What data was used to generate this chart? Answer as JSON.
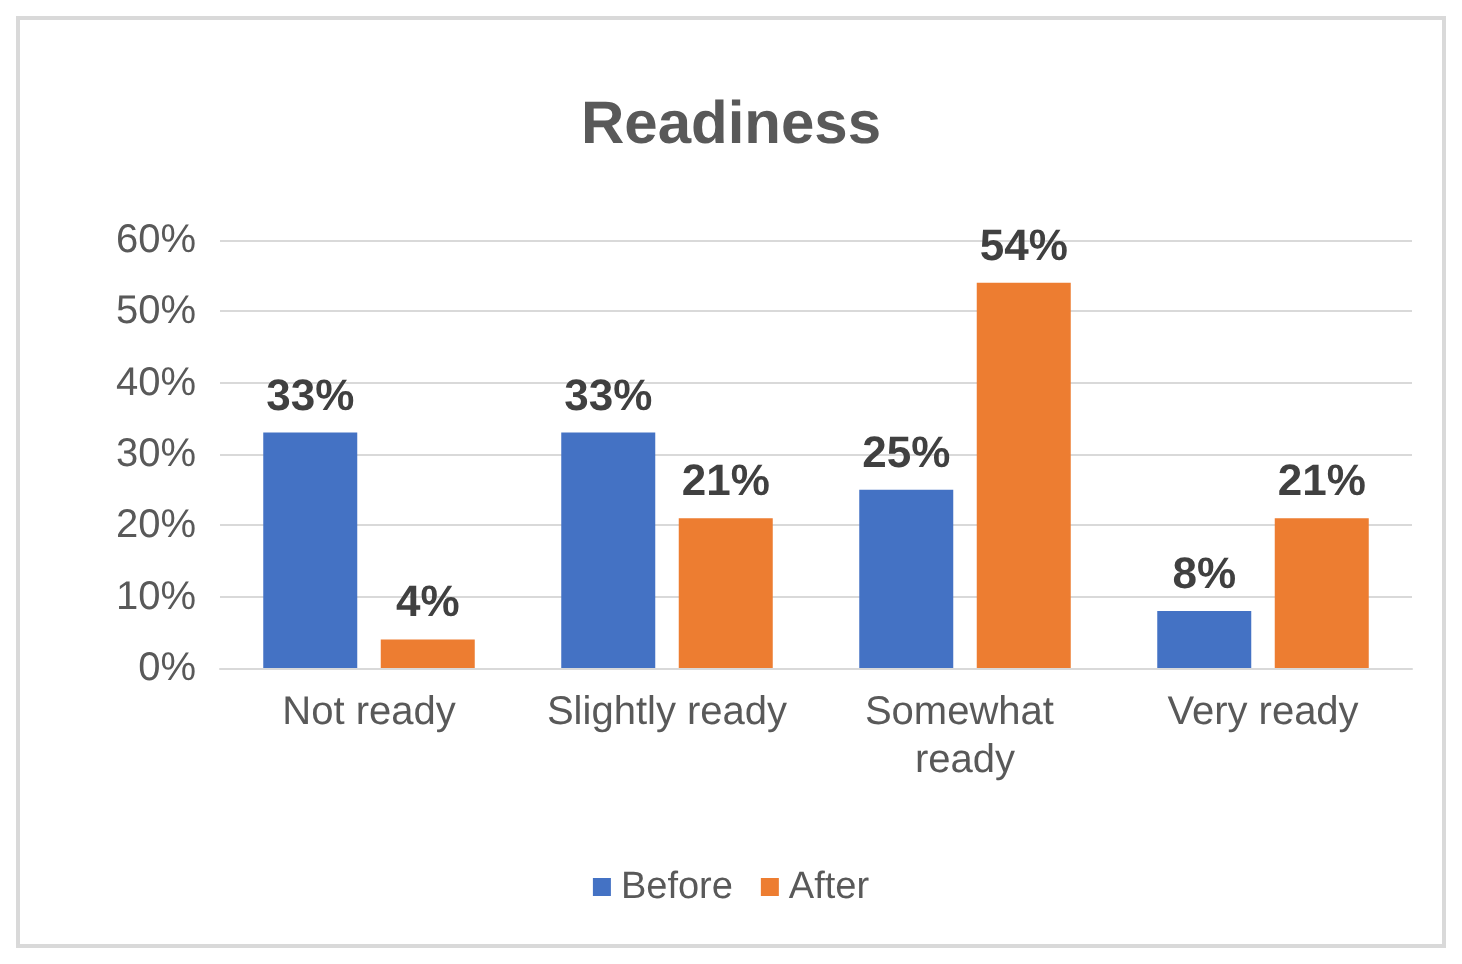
{
  "chart_data": {
    "type": "bar",
    "title": "Readiness",
    "categories": [
      "Not ready",
      "Slightly ready",
      "Somewhat ready",
      "Very ready"
    ],
    "series": [
      {
        "name": "Before",
        "color": "#4472c4",
        "values": [
          33,
          33,
          25,
          8
        ],
        "value_labels": [
          "33%",
          "33%",
          "25%",
          "8%"
        ]
      },
      {
        "name": "After",
        "color": "#ed7d31",
        "values": [
          4,
          21,
          54,
          21
        ],
        "value_labels": [
          "4%",
          "21%",
          "54%",
          "21%"
        ]
      }
    ],
    "ylim": [
      0,
      60
    ],
    "yticks": [
      {
        "value": 0,
        "label": "0%"
      },
      {
        "value": 10,
        "label": "10%"
      },
      {
        "value": 20,
        "label": "20%"
      },
      {
        "value": 30,
        "label": "30%"
      },
      {
        "value": 40,
        "label": "40%"
      },
      {
        "value": 50,
        "label": "50%"
      },
      {
        "value": 60,
        "label": "60%"
      }
    ],
    "grid": "y",
    "legend": "bottom"
  }
}
